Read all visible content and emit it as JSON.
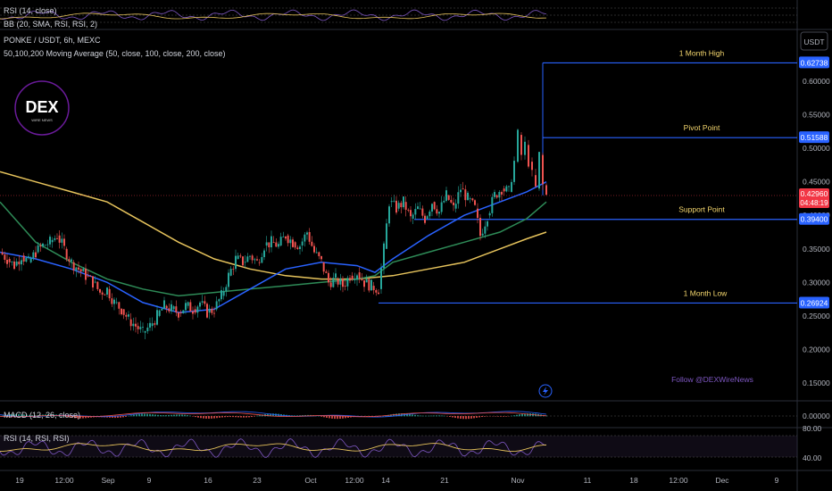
{
  "header": {
    "symbol_line": "PONKE / USDT, 6h, MEXC",
    "ma_line": "50,100,200 Moving Average (50, close, 100, close, 200, close)",
    "top_rsi_label": "RSI (14, close)",
    "top_bb_label": "BB (20, SMA, RSI, RSI, 2)",
    "currency_button": "USDT",
    "logo_text": "DEX",
    "logo_subtext": "WIRE NEWS"
  },
  "watermark": "Follow @DEXWireNews",
  "colors": {
    "up": "#26a69a",
    "down": "#ef5350",
    "ma50": "#2962ff",
    "ma100": "#2e8b57",
    "ma200": "#e6c35c",
    "level_line": "#2962ff",
    "level_text": "#f5d76e",
    "price_tag": "#f23645",
    "level_tag": "#2962ff",
    "rsi": "#7e57c2",
    "rsi_ma": "#e6c35c"
  },
  "chart_data": {
    "type": "candlestick",
    "title": "PONKE / USDT, 6h, MEXC",
    "y_axis": {
      "ticks": [
        "0.60000",
        "0.55000",
        "0.50000",
        "0.45000",
        "0.40000",
        "0.35000",
        "0.30000",
        "0.25000",
        "0.20000",
        "0.15000"
      ],
      "min": 0.1,
      "max": 0.66
    },
    "x_axis": {
      "ticks": [
        "19",
        "12:00",
        "Sep",
        "9",
        "16",
        "23",
        "Oct",
        "12:00",
        "14",
        "21",
        "Nov",
        "11",
        "18",
        "12:00",
        "Dec",
        "9"
      ]
    },
    "levels": [
      {
        "label": "1 Month High",
        "value": 0.62738,
        "tag": "0.62738"
      },
      {
        "label": "Pivot Point",
        "value": 0.51588,
        "tag": "0.51588"
      },
      {
        "label": "Support Point",
        "value": 0.394,
        "tag": "0.39400"
      },
      {
        "label": "1 Month Low",
        "value": 0.26924,
        "tag": "0.26924"
      }
    ],
    "current_price": {
      "tag": "0.42960",
      "value": 0.4296,
      "countdown": "04:48:19"
    },
    "price_path": [
      [
        0,
        0.345
      ],
      [
        8,
        0.335
      ],
      [
        16,
        0.325
      ],
      [
        24,
        0.34
      ],
      [
        32,
        0.33
      ],
      [
        40,
        0.345
      ],
      [
        48,
        0.355
      ],
      [
        56,
        0.36
      ],
      [
        64,
        0.37
      ],
      [
        72,
        0.35
      ],
      [
        80,
        0.33
      ],
      [
        88,
        0.32
      ],
      [
        96,
        0.31
      ],
      [
        104,
        0.3
      ],
      [
        112,
        0.285
      ],
      [
        120,
        0.29
      ],
      [
        128,
        0.27
      ],
      [
        136,
        0.26
      ],
      [
        144,
        0.245
      ],
      [
        152,
        0.235
      ],
      [
        160,
        0.225
      ],
      [
        168,
        0.235
      ],
      [
        176,
        0.25
      ],
      [
        184,
        0.265
      ],
      [
        192,
        0.26
      ],
      [
        200,
        0.255
      ],
      [
        208,
        0.265
      ],
      [
        216,
        0.26
      ],
      [
        224,
        0.27
      ],
      [
        232,
        0.255
      ],
      [
        240,
        0.26
      ],
      [
        248,
        0.28
      ],
      [
        256,
        0.31
      ],
      [
        264,
        0.335
      ],
      [
        272,
        0.33
      ],
      [
        280,
        0.34
      ],
      [
        288,
        0.33
      ],
      [
        296,
        0.355
      ],
      [
        304,
        0.36
      ],
      [
        312,
        0.355
      ],
      [
        320,
        0.37
      ],
      [
        328,
        0.36
      ],
      [
        336,
        0.355
      ],
      [
        344,
        0.375
      ],
      [
        352,
        0.345
      ],
      [
        360,
        0.33
      ],
      [
        368,
        0.3
      ],
      [
        376,
        0.305
      ],
      [
        384,
        0.295
      ],
      [
        392,
        0.31
      ],
      [
        400,
        0.315
      ],
      [
        408,
        0.3
      ],
      [
        416,
        0.295
      ],
      [
        424,
        0.29
      ],
      [
        430,
        0.35
      ],
      [
        436,
        0.42
      ],
      [
        444,
        0.41
      ],
      [
        452,
        0.42
      ],
      [
        460,
        0.395
      ],
      [
        468,
        0.41
      ],
      [
        476,
        0.395
      ],
      [
        484,
        0.42
      ],
      [
        492,
        0.405
      ],
      [
        500,
        0.43
      ],
      [
        508,
        0.41
      ],
      [
        516,
        0.44
      ],
      [
        524,
        0.425
      ],
      [
        532,
        0.41
      ],
      [
        538,
        0.37
      ],
      [
        546,
        0.4
      ],
      [
        554,
        0.43
      ],
      [
        562,
        0.44
      ],
      [
        570,
        0.435
      ],
      [
        576,
        0.48
      ],
      [
        580,
        0.52
      ],
      [
        584,
        0.49
      ],
      [
        588,
        0.505
      ],
      [
        592,
        0.48
      ],
      [
        596,
        0.46
      ],
      [
        600,
        0.44
      ],
      [
        604,
        0.49
      ],
      [
        608,
        0.445
      ],
      [
        612,
        0.4296
      ]
    ],
    "ma50_path": [
      [
        0,
        0.345
      ],
      [
        40,
        0.335
      ],
      [
        80,
        0.32
      ],
      [
        120,
        0.3
      ],
      [
        160,
        0.27
      ],
      [
        200,
        0.255
      ],
      [
        240,
        0.26
      ],
      [
        280,
        0.29
      ],
      [
        320,
        0.32
      ],
      [
        360,
        0.33
      ],
      [
        400,
        0.325
      ],
      [
        420,
        0.315
      ],
      [
        440,
        0.335
      ],
      [
        480,
        0.37
      ],
      [
        520,
        0.4
      ],
      [
        560,
        0.42
      ],
      [
        590,
        0.435
      ],
      [
        612,
        0.45
      ]
    ],
    "ma100_path": [
      [
        0,
        0.42
      ],
      [
        40,
        0.36
      ],
      [
        80,
        0.33
      ],
      [
        120,
        0.305
      ],
      [
        160,
        0.29
      ],
      [
        200,
        0.28
      ],
      [
        240,
        0.285
      ],
      [
        280,
        0.29
      ],
      [
        320,
        0.295
      ],
      [
        360,
        0.3
      ],
      [
        400,
        0.305
      ],
      [
        420,
        0.31
      ],
      [
        440,
        0.33
      ],
      [
        480,
        0.345
      ],
      [
        520,
        0.36
      ],
      [
        560,
        0.375
      ],
      [
        590,
        0.395
      ],
      [
        612,
        0.42
      ]
    ],
    "ma200_path": [
      [
        0,
        0.465
      ],
      [
        40,
        0.45
      ],
      [
        80,
        0.435
      ],
      [
        120,
        0.42
      ],
      [
        160,
        0.39
      ],
      [
        200,
        0.36
      ],
      [
        240,
        0.335
      ],
      [
        280,
        0.32
      ],
      [
        320,
        0.31
      ],
      [
        360,
        0.305
      ],
      [
        400,
        0.305
      ],
      [
        440,
        0.31
      ],
      [
        480,
        0.32
      ],
      [
        520,
        0.33
      ],
      [
        560,
        0.35
      ],
      [
        590,
        0.365
      ],
      [
        612,
        0.375
      ]
    ],
    "macd": {
      "label": "MACD (12, 26, close)",
      "tick": "0.00000"
    },
    "rsi": {
      "label": "RSI (14, RSI, RSI)",
      "ticks": [
        "80.00",
        "40.00"
      ]
    }
  }
}
